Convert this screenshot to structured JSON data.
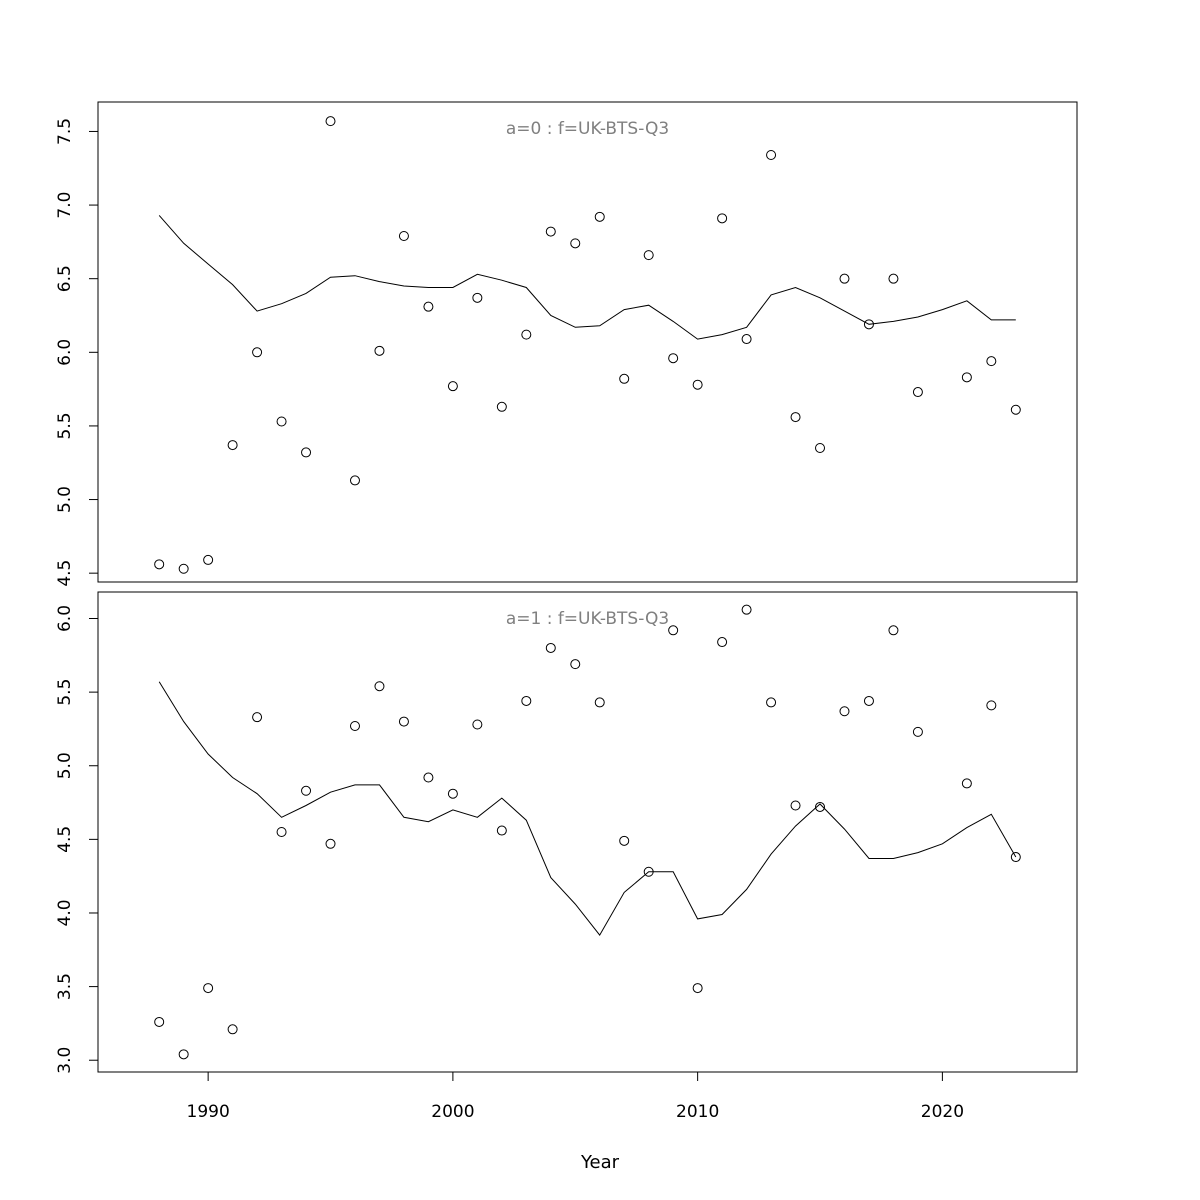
{
  "chart_data": {
    "type": "scatter",
    "xlabel": "Year",
    "x_ticks": [
      1990,
      2000,
      2010,
      2020
    ],
    "xlim": [
      1985.5,
      2025.5
    ],
    "panels": [
      {
        "title": "a=0  :  f=UK-BTS-Q3",
        "ylim": [
          4.44,
          7.7
        ],
        "y_ticks": [
          "4.5",
          "5.0",
          "5.5",
          "6.0",
          "6.5",
          "7.0",
          "7.5"
        ],
        "series": [
          {
            "type": "scatter",
            "x": [
              1988,
              1989,
              1990,
              1991,
              1992,
              1993,
              1994,
              1995,
              1996,
              1997,
              1998,
              1999,
              2000,
              2001,
              2002,
              2003,
              2004,
              2005,
              2006,
              2007,
              2008,
              2009,
              2010,
              2011,
              2012,
              2013,
              2014,
              2015,
              2016,
              2017,
              2018,
              2019,
              2021,
              2022,
              2023
            ],
            "y": [
              4.56,
              4.53,
              4.59,
              5.37,
              6.0,
              5.53,
              5.32,
              7.57,
              5.13,
              6.01,
              6.79,
              6.31,
              5.77,
              6.37,
              5.63,
              6.12,
              6.82,
              6.74,
              6.92,
              5.82,
              6.66,
              5.96,
              5.78,
              6.91,
              6.09,
              7.34,
              5.56,
              5.35,
              6.5,
              6.19,
              6.5,
              5.73,
              5.83,
              5.94,
              5.61
            ]
          },
          {
            "type": "line",
            "x": [
              1988,
              1989,
              1990,
              1991,
              1992,
              1993,
              1994,
              1995,
              1996,
              1997,
              1998,
              1999,
              2000,
              2001,
              2002,
              2003,
              2004,
              2005,
              2006,
              2007,
              2008,
              2009,
              2010,
              2011,
              2012,
              2013,
              2014,
              2015,
              2016,
              2017,
              2018,
              2019,
              2020,
              2021,
              2022,
              2023
            ],
            "y": [
              6.93,
              6.74,
              6.6,
              6.46,
              6.28,
              6.33,
              6.4,
              6.51,
              6.52,
              6.48,
              6.45,
              6.44,
              6.44,
              6.53,
              6.49,
              6.44,
              6.25,
              6.17,
              6.18,
              6.29,
              6.32,
              6.21,
              6.09,
              6.12,
              6.17,
              6.39,
              6.44,
              6.37,
              6.28,
              6.19,
              6.21,
              6.24,
              6.29,
              6.35,
              6.22,
              6.22
            ]
          }
        ]
      },
      {
        "title": "a=1  :  f=UK-BTS-Q3",
        "ylim": [
          2.92,
          6.18
        ],
        "y_ticks": [
          "3.0",
          "3.5",
          "4.0",
          "4.5",
          "5.0",
          "5.5",
          "6.0"
        ],
        "series": [
          {
            "type": "scatter",
            "x": [
              1988,
              1989,
              1990,
              1991,
              1992,
              1993,
              1994,
              1995,
              1996,
              1997,
              1998,
              1999,
              2000,
              2001,
              2002,
              2003,
              2004,
              2005,
              2006,
              2007,
              2008,
              2009,
              2010,
              2011,
              2012,
              2013,
              2014,
              2015,
              2016,
              2017,
              2018,
              2019,
              2021,
              2022,
              2023
            ],
            "y": [
              3.26,
              3.04,
              3.49,
              3.21,
              5.33,
              4.55,
              4.83,
              4.47,
              5.27,
              5.54,
              5.3,
              4.92,
              4.81,
              5.28,
              4.56,
              5.44,
              5.8,
              5.69,
              5.43,
              4.49,
              4.28,
              5.92,
              3.49,
              5.84,
              6.06,
              5.43,
              4.73,
              4.72,
              5.37,
              5.44,
              5.92,
              5.23,
              4.88,
              5.41,
              4.38
            ]
          },
          {
            "type": "line",
            "x": [
              1988,
              1989,
              1990,
              1991,
              1992,
              1993,
              1994,
              1995,
              1996,
              1997,
              1998,
              1999,
              2000,
              2001,
              2002,
              2003,
              2004,
              2005,
              2006,
              2007,
              2008,
              2009,
              2010,
              2011,
              2012,
              2013,
              2014,
              2015,
              2016,
              2017,
              2018,
              2019,
              2020,
              2021,
              2022,
              2023
            ],
            "y": [
              5.57,
              5.3,
              5.08,
              4.92,
              4.81,
              4.65,
              4.73,
              4.82,
              4.87,
              4.87,
              4.65,
              4.62,
              4.7,
              4.65,
              4.78,
              4.63,
              4.24,
              4.06,
              3.85,
              4.14,
              4.28,
              4.28,
              3.96,
              3.99,
              4.16,
              4.4,
              4.59,
              4.74,
              4.57,
              4.37,
              4.37,
              4.41,
              4.47,
              4.58,
              4.67,
              4.38
            ]
          }
        ]
      }
    ]
  }
}
